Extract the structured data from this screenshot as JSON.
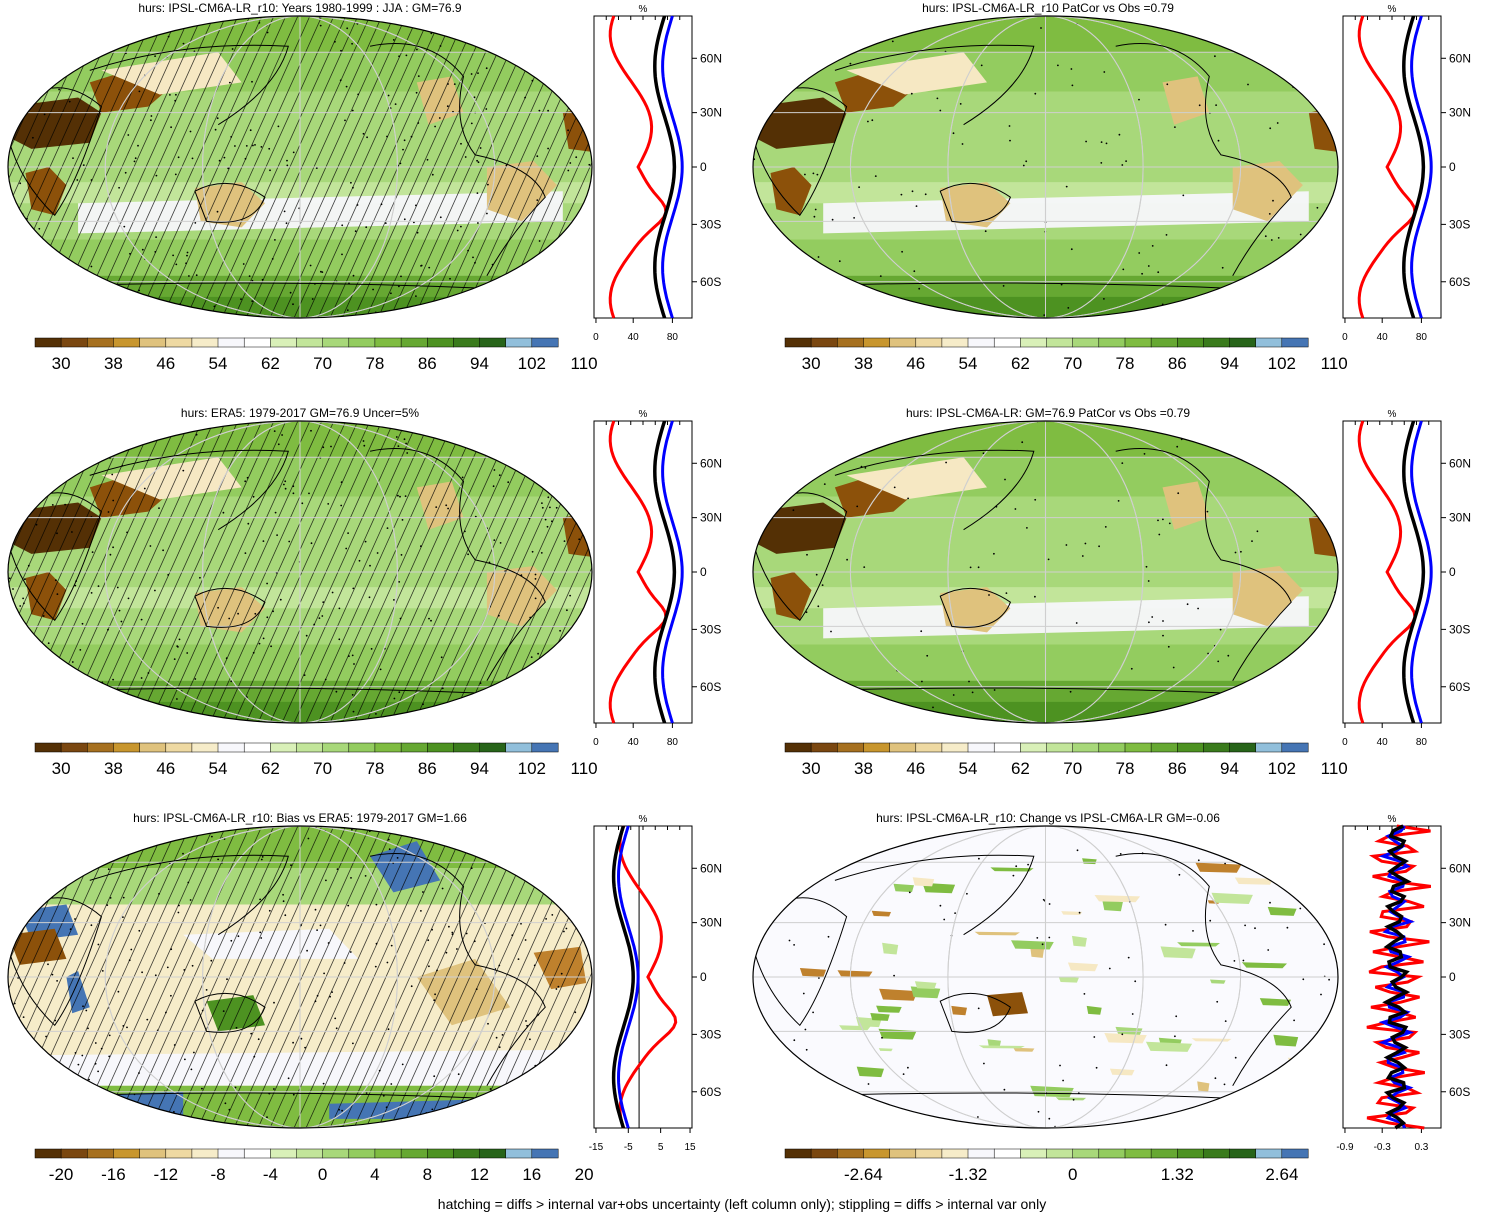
{
  "footer": "hatching = diffs > internal var+obs uncertainty (left column only); stippling = diffs > internal var only",
  "colors": {
    "land_dry": [
      "#543005",
      "#8c510a",
      "#bf812d",
      "#dfc27d",
      "#f6e8c3"
    ],
    "neutral": "#f7f7fb",
    "wet": [
      "#c7e9a0",
      "#a1d76a",
      "#7fbc41",
      "#4d9221",
      "#276419"
    ],
    "ocean_blue": [
      "#91bfdb",
      "#4575b4"
    ],
    "profile_red": "#ff0000",
    "profile_blue": "#0000ff",
    "profile_black": "#000000"
  },
  "chart_data": [
    {
      "type": "heatmap",
      "title": "hurs: IPSL-CM6A-LR_r10: Years 1980-1999 : JJA : GM=76.9",
      "colorbar": [
        "30",
        "38",
        "46",
        "54",
        "62",
        "70",
        "78",
        "86",
        "94",
        "102",
        "110"
      ],
      "profile_units": "%",
      "profile_xticks": [
        "0",
        "40",
        "80"
      ],
      "profile_yticks": [
        "60N",
        "30N",
        "0",
        "30S",
        "60S"
      ],
      "hatching": true,
      "stippling": true
    },
    {
      "type": "heatmap",
      "title": "hurs: IPSL-CM6A-LR_r10 PatCor vs Obs =0.79",
      "colorbar": [
        "30",
        "38",
        "46",
        "54",
        "62",
        "70",
        "78",
        "86",
        "94",
        "102",
        "110"
      ],
      "profile_units": "%",
      "profile_xticks": [
        "0",
        "40",
        "80"
      ],
      "profile_yticks": [
        "60N",
        "30N",
        "0",
        "30S",
        "60S"
      ],
      "hatching": false,
      "stippling": true
    },
    {
      "type": "heatmap",
      "title": "hurs: ERA5: 1979-2017 GM=76.9 Uncer=5%",
      "colorbar": [
        "30",
        "38",
        "46",
        "54",
        "62",
        "70",
        "78",
        "86",
        "94",
        "102",
        "110"
      ],
      "profile_units": "%",
      "profile_xticks": [
        "0",
        "40",
        "80"
      ],
      "profile_yticks": [
        "60N",
        "30N",
        "0",
        "30S",
        "60S"
      ],
      "hatching": true,
      "stippling": true
    },
    {
      "type": "heatmap",
      "title": "hurs: IPSL-CM6A-LR: GM=76.9 PatCor vs Obs =0.79",
      "colorbar": [
        "30",
        "38",
        "46",
        "54",
        "62",
        "70",
        "78",
        "86",
        "94",
        "102",
        "110"
      ],
      "profile_units": "%",
      "profile_xticks": [
        "0",
        "40",
        "80"
      ],
      "profile_yticks": [
        "60N",
        "30N",
        "0",
        "30S",
        "60S"
      ],
      "hatching": false,
      "stippling": true
    },
    {
      "type": "heatmap",
      "title": "hurs: IPSL-CM6A-LR_r10: Bias vs ERA5: 1979-2017 GM=1.66",
      "colorbar": [
        "-20",
        "-16",
        "-12",
        "-8",
        "-4",
        "0",
        "4",
        "8",
        "12",
        "16",
        "20"
      ],
      "profile_units": "%",
      "profile_xticks": [
        "-15",
        "-5",
        "5",
        "15"
      ],
      "profile_yticks": [
        "60N",
        "30N",
        "0",
        "30S",
        "60S"
      ],
      "hatching": true,
      "stippling": true
    },
    {
      "type": "heatmap",
      "title": "hurs: IPSL-CM6A-LR_r10: Change vs IPSL-CM6A-LR GM=-0.06",
      "colorbar": [
        "-2.64",
        "-1.32",
        "0",
        "1.32",
        "2.64"
      ],
      "profile_units": "%",
      "profile_xticks": [
        "-0.9",
        "-0.3",
        "0.3"
      ],
      "profile_yticks": [
        "60N",
        "30N",
        "0",
        "30S",
        "60S"
      ],
      "hatching": false,
      "stippling": true
    }
  ]
}
